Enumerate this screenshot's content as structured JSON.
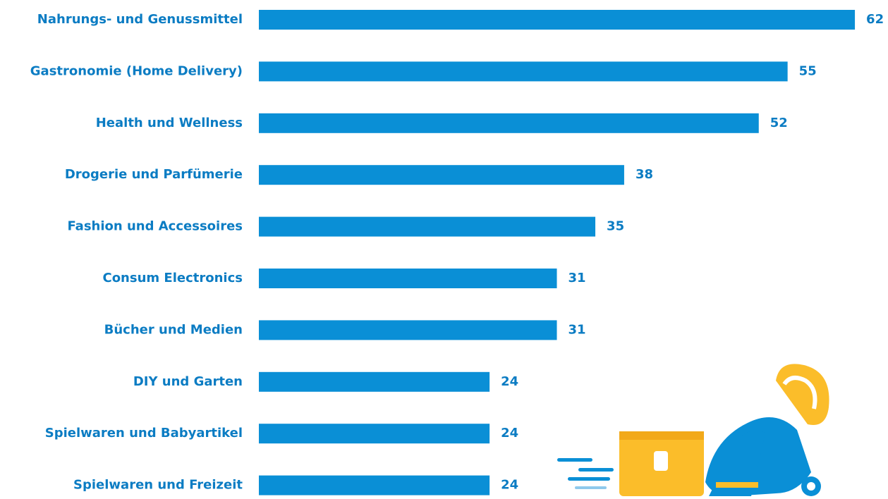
{
  "chart_data": {
    "type": "bar",
    "orientation": "horizontal",
    "color": "#0a8fd6",
    "categories": [
      "Nahrungs- und Genussmittel",
      "Gastronomie (Home Delivery)",
      "Health und Wellness",
      "Drogerie und Parfümerie",
      "Fashion und Accessoires",
      "Consum Electronics",
      "Bücher und Medien",
      "DIY und Garten",
      "Spielwaren und Babyartikel",
      "Spielwaren und Freizeit"
    ],
    "values": [
      62,
      55,
      52,
      38,
      35,
      31,
      31,
      24,
      24,
      24
    ]
  }
}
